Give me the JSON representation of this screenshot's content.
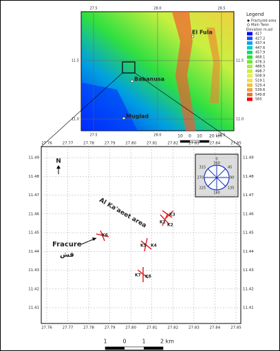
{
  "inset": {
    "xticks": [
      {
        "value": 27.5,
        "label": "27.5"
      },
      {
        "value": 28.0,
        "label": "28.0"
      },
      {
        "value": 28.5,
        "label": "28.5"
      }
    ],
    "yticks": [
      {
        "value": 11.5,
        "label": "11.5"
      },
      {
        "value": 11.0,
        "label": "11.0"
      }
    ],
    "xlim": [
      27.403,
      28.597
    ],
    "ylim": [
      10.9,
      11.918
    ],
    "places": [
      "El Fula",
      "Babanusa",
      "Muglad"
    ],
    "scale_labels": [
      "10",
      "0",
      "10",
      "20 km"
    ]
  },
  "legend": {
    "title": "Legend",
    "symbols": [
      "Fractured area",
      "Main Twon"
    ],
    "elevation_title": "Elevation m.asl",
    "classes": [
      417,
      427.2,
      437.4,
      447.6,
      457.9,
      468.1,
      478.3,
      488.5,
      498.7,
      508.9,
      519.1,
      529.4,
      539.6,
      549.8,
      560
    ],
    "colors": [
      "#0000ff",
      "#0050ff",
      "#00a0ff",
      "#00d0c0",
      "#00e060",
      "#30e030",
      "#70e830",
      "#a0f040",
      "#c8f040",
      "#e8f040",
      "#f0e040",
      "#f0c040",
      "#f0a040",
      "#f07030",
      "#f00000"
    ]
  },
  "main": {
    "xticks": [
      27.76,
      27.77,
      27.78,
      27.79,
      {
        "value": 27.8,
        "label": "27.80"
      },
      27.81,
      27.82,
      27.83,
      27.84,
      27.85
    ],
    "yticks": [
      11.41,
      11.42,
      11.43,
      11.44,
      11.45,
      11.46,
      11.47,
      11.48,
      11.49
    ],
    "xlim": [
      27.7574,
      27.8523
    ],
    "ylim": [
      11.4016,
      11.4959
    ],
    "north": "N",
    "area_label": "Al Ka'aeet area",
    "fracture_label": "Fracure",
    "arabic": "قش",
    "sites": [
      "K1",
      "K2",
      "K3",
      "K4",
      "K5",
      "K6",
      "K7",
      "K8"
    ],
    "compass": [
      "0",
      "360",
      "45",
      "90",
      "135",
      "180",
      "225",
      "270",
      "315"
    ],
    "scale_labels": [
      "1",
      "0",
      "1",
      "2 km"
    ]
  }
}
